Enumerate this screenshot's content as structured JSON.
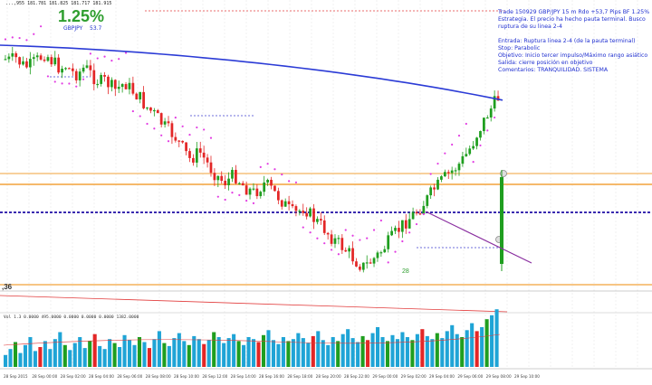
{
  "header": {
    "ohlc_text": "...,955 181.781 181.825 181.717 181.915",
    "percent": "1.25%",
    "symbol_label": "GBPJPY",
    "pips_label": "53.7"
  },
  "notes": {
    "line1": "Trade 150929 GBP/JPY 15 m Rdo +53,7 Pips BF 1.25%",
    "line2": "Estrategia. El precio ha hecho pauta terminal. Busco",
    "line3": "ruptura de su linea 2-4",
    "line4": "Entrada: Ruptura linea 2-4 (de la pauta terminal)",
    "line5": "Stop: Parabolic",
    "line6": "Objetivo: Inicio tercer impulso/Máximo rango asiático",
    "line7": "Salida: cierre posición en objetivo",
    "line8": "Comentarios: TRANQUILIDAD. SISTEMA"
  },
  "labels": {
    "left_price": ",36",
    "wave_label": "28",
    "volume_header": "Vol 1.3  0.0000 495.0000 0.0000 0.0000 0.0000 1382.0000"
  },
  "colors": {
    "bull": "#1f9e1f",
    "bear": "#e32626",
    "sar": "#e23ce2",
    "ma": "#2b3bd6",
    "level": "#f2a23a",
    "entry": "#3a2bb0",
    "trend": "#8a2fa0",
    "text_blue": "#1f2fd0"
  },
  "chart_data": {
    "type": "candlestick",
    "title": "",
    "xlabel": "",
    "ylabel": "",
    "x_ticks": [
      "28 Sep 2015",
      "28 Sep 23:00",
      "28 Sep 00:00",
      "28 Sep 01:00",
      "28 Sep 02:00",
      "28 Sep 03:00",
      "28 Sep 04:00",
      "28 Sep 05:00",
      "28 Sep 06:00",
      "28 Sep 07:00",
      "28 Sep 08:00",
      "28 Sep 09:00",
      "28 Sep 10:00",
      "28 Sep 11:00",
      "28 Sep 12:00",
      "28 Sep 13:00",
      "28 Sep 14:00",
      "28 Sep 15:00",
      "28 Sep 16:00",
      "28 Sep 17:00",
      "28 Sep 18:00",
      "28 Sep 19:00",
      "28 Sep 20:00",
      "28 Sep 21:00",
      "28 Sep 22:00",
      "28 Sep 23:00",
      "29 Sep 00:00",
      "29 Sep 01:00",
      "29 Sep 02:00",
      "29 Sep 03:00",
      "29 Sep 04:00",
      "29 Sep 05:00",
      "29 Sep 06:00",
      "29 Sep 07:00",
      "29 Sep 08:00",
      "29 Sep 09:00",
      "29 Sep 10:00"
    ],
    "close_profile": [
      30,
      32,
      28,
      35,
      40,
      38,
      33,
      28,
      22,
      30,
      36,
      42,
      38,
      44,
      50,
      46,
      40,
      48,
      55,
      60,
      58,
      64,
      70,
      66,
      60,
      68,
      74,
      80,
      90,
      96,
      102,
      110,
      118,
      124,
      130,
      140,
      150,
      160,
      156,
      150,
      160,
      170,
      178,
      185,
      190,
      186,
      180,
      188,
      196,
      200,
      204,
      198,
      192,
      196,
      204,
      210,
      218,
      226,
      232,
      228,
      222,
      230,
      238,
      244,
      250,
      258,
      265,
      270,
      276,
      282,
      290,
      296,
      300,
      296,
      290,
      284,
      276,
      268,
      260,
      252,
      244,
      238,
      232,
      226,
      218,
      210,
      200,
      194,
      186,
      180,
      174,
      168,
      160,
      150,
      138,
      124,
      112,
      100,
      90,
      80
    ],
    "volume_heights": [
      12,
      18,
      25,
      14,
      22,
      30,
      16,
      20,
      26,
      18,
      28,
      35,
      22,
      17,
      24,
      30,
      19,
      26,
      33,
      21,
      18,
      28,
      24,
      20,
      32,
      27,
      22,
      30,
      25,
      19,
      28,
      36,
      24,
      21,
      29,
      34,
      26,
      22,
      31,
      28,
      23,
      27,
      35,
      30,
      24,
      29,
      33,
      26,
      22,
      30,
      28,
      25,
      32,
      37,
      27,
      23,
      30,
      26,
      28,
      34,
      29,
      24,
      31,
      36,
      27,
      22,
      30,
      26,
      33,
      38,
      29,
      25,
      31,
      27,
      34,
      40,
      30,
      26,
      32,
      28,
      35,
      30,
      27,
      33,
      38,
      31,
      28,
      34,
      29,
      36,
      42,
      33,
      30,
      37,
      44,
      36,
      40,
      48,
      52,
      58
    ],
    "sar_on": true,
    "ma_on": true
  }
}
